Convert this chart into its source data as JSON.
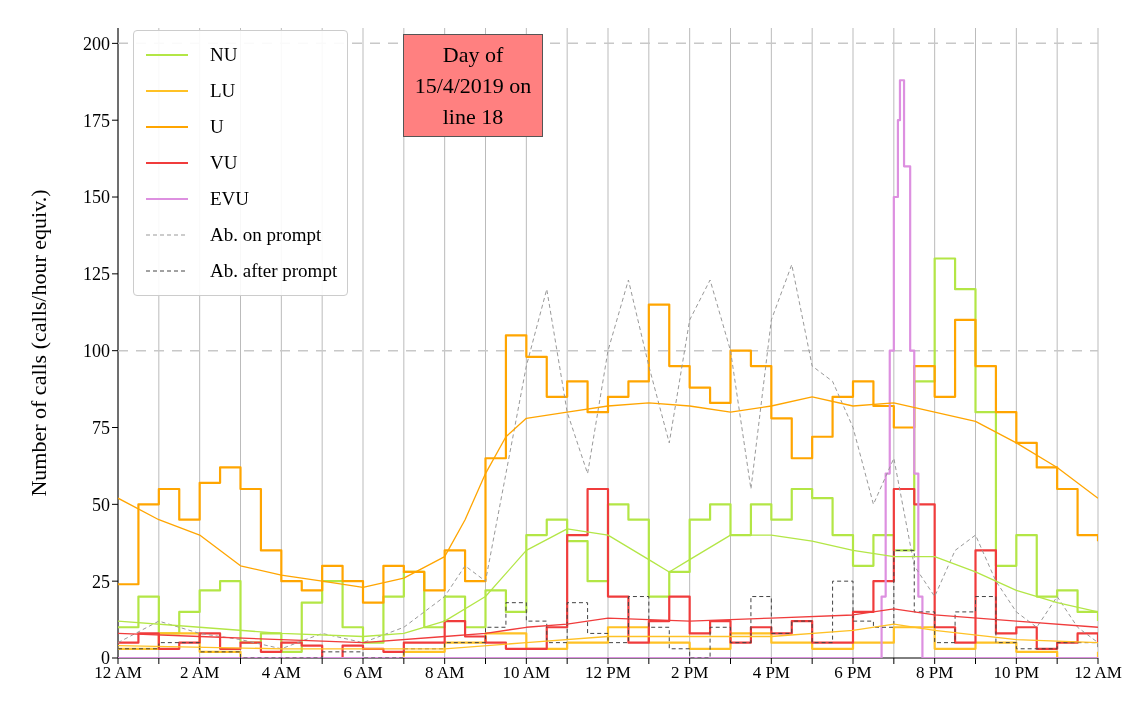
{
  "chart_data": {
    "type": "line",
    "ylabel": "Number of calls (calls/hour equiv.)",
    "xlim": [
      "2019-04-15T00:00",
      "2019-04-16T00:00"
    ],
    "ylim": [
      0,
      205
    ],
    "xticks": [
      {
        "value": "2019-04-15T00:00",
        "label": "12 AM"
      },
      {
        "value": "2019-04-15T01:00",
        "label": null
      },
      {
        "value": "2019-04-15T02:00",
        "label": "2 AM"
      },
      {
        "value": "2019-04-15T03:00",
        "label": null
      },
      {
        "value": "2019-04-15T04:00",
        "label": "4 AM"
      },
      {
        "value": "2019-04-15T05:00",
        "label": null
      },
      {
        "value": "2019-04-15T06:00",
        "label": "6 AM"
      },
      {
        "value": "2019-04-15T07:00",
        "label": null
      },
      {
        "value": "2019-04-15T08:00",
        "label": "8 AM"
      },
      {
        "value": "2019-04-15T09:00",
        "label": null
      },
      {
        "value": "2019-04-15T10:00",
        "label": "10 AM"
      },
      {
        "value": "2019-04-15T11:00",
        "label": null
      },
      {
        "value": "2019-04-15T12:00",
        "label": "12 PM"
      },
      {
        "value": "2019-04-15T13:00",
        "label": null
      },
      {
        "value": "2019-04-15T14:00",
        "label": "2 PM"
      },
      {
        "value": "2019-04-15T15:00",
        "label": null
      },
      {
        "value": "2019-04-15T16:00",
        "label": "4 PM"
      },
      {
        "value": "2019-04-15T17:00",
        "label": null
      },
      {
        "value": "2019-04-15T18:00",
        "label": "6 PM"
      },
      {
        "value": "2019-04-15T19:00",
        "label": null
      },
      {
        "value": "2019-04-15T20:00",
        "label": "8 PM"
      },
      {
        "value": "2019-04-15T21:00",
        "label": null
      },
      {
        "value": "2019-04-15T22:00",
        "label": "10 PM"
      },
      {
        "value": "2019-04-15T23:00",
        "label": null
      },
      {
        "value": "2019-04-16T00:00",
        "label": "12 AM"
      }
    ],
    "yticks": [
      0,
      25,
      50,
      75,
      100,
      125,
      150,
      175,
      200
    ],
    "grid": "x",
    "legend": "top left",
    "marker": "none",
    "ref_lines": [
      {
        "axis": "y",
        "value": 100,
        "color": "#c8c8c8",
        "line_style": "dashed"
      },
      {
        "axis": "y",
        "value": 200,
        "color": "#c8c8c8",
        "line_style": "dashed"
      }
    ],
    "annotations": [
      "Day of 15/4/2019 on line 18"
    ],
    "series": [
      {
        "name": "NU",
        "type": "step",
        "color": "#b3e646",
        "x": [
          "2019-04-15T00:00",
          "2019-04-15T00:30",
          "2019-04-15T01:00",
          "2019-04-15T01:30",
          "2019-04-15T02:00",
          "2019-04-15T02:30",
          "2019-04-15T03:00",
          "2019-04-15T03:30",
          "2019-04-15T04:00",
          "2019-04-15T04:30",
          "2019-04-15T05:00",
          "2019-04-15T05:30",
          "2019-04-15T06:00",
          "2019-04-15T06:30",
          "2019-04-15T07:00",
          "2019-04-15T07:30",
          "2019-04-15T08:00",
          "2019-04-15T08:30",
          "2019-04-15T09:00",
          "2019-04-15T09:30",
          "2019-04-15T10:00",
          "2019-04-15T10:30",
          "2019-04-15T11:00",
          "2019-04-15T11:30",
          "2019-04-15T12:00",
          "2019-04-15T12:30",
          "2019-04-15T13:00",
          "2019-04-15T13:30",
          "2019-04-15T14:00",
          "2019-04-15T14:30",
          "2019-04-15T15:00",
          "2019-04-15T15:30",
          "2019-04-15T16:00",
          "2019-04-15T16:30",
          "2019-04-15T17:00",
          "2019-04-15T17:30",
          "2019-04-15T18:00",
          "2019-04-15T18:30",
          "2019-04-15T19:00",
          "2019-04-15T19:30",
          "2019-04-15T20:00",
          "2019-04-15T20:30",
          "2019-04-15T21:00",
          "2019-04-15T21:30",
          "2019-04-15T22:00",
          "2019-04-15T22:30",
          "2019-04-15T23:00",
          "2019-04-15T23:30",
          "2019-04-16T00:00"
        ],
        "values": [
          10,
          20,
          8,
          15,
          22,
          25,
          5,
          8,
          2,
          18,
          25,
          10,
          5,
          20,
          28,
          10,
          20,
          10,
          22,
          15,
          40,
          45,
          38,
          25,
          50,
          45,
          20,
          28,
          45,
          50,
          40,
          50,
          45,
          55,
          52,
          40,
          30,
          40,
          35,
          90,
          130,
          120,
          80,
          30,
          40,
          20,
          22,
          15,
          12
        ]
      },
      {
        "name": "LU",
        "type": "step",
        "color": "#ffc125",
        "x": [
          "2019-04-15T00:00",
          "2019-04-15T01:00",
          "2019-04-15T02:00",
          "2019-04-15T03:00",
          "2019-04-15T04:00",
          "2019-04-15T05:00",
          "2019-04-15T06:00",
          "2019-04-15T07:00",
          "2019-04-15T08:00",
          "2019-04-15T09:00",
          "2019-04-15T10:00",
          "2019-04-15T11:00",
          "2019-04-15T12:00",
          "2019-04-15T13:00",
          "2019-04-15T14:00",
          "2019-04-15T15:00",
          "2019-04-15T16:00",
          "2019-04-15T17:00",
          "2019-04-15T18:00",
          "2019-04-15T19:00",
          "2019-04-15T20:00",
          "2019-04-15T21:00",
          "2019-04-15T22:00",
          "2019-04-15T23:00",
          "2019-04-16T00:00"
        ],
        "values": [
          3,
          8,
          2,
          0,
          0,
          0,
          0,
          2,
          5,
          8,
          3,
          5,
          10,
          5,
          3,
          8,
          5,
          3,
          5,
          10,
          3,
          5,
          2,
          0,
          2
        ]
      },
      {
        "name": "U",
        "type": "step",
        "color": "#ffa500",
        "x": [
          "2019-04-15T00:00",
          "2019-04-15T00:30",
          "2019-04-15T01:00",
          "2019-04-15T01:30",
          "2019-04-15T02:00",
          "2019-04-15T02:30",
          "2019-04-15T03:00",
          "2019-04-15T03:30",
          "2019-04-15T04:00",
          "2019-04-15T04:30",
          "2019-04-15T05:00",
          "2019-04-15T05:30",
          "2019-04-15T06:00",
          "2019-04-15T06:30",
          "2019-04-15T07:00",
          "2019-04-15T07:30",
          "2019-04-15T08:00",
          "2019-04-15T08:30",
          "2019-04-15T09:00",
          "2019-04-15T09:30",
          "2019-04-15T10:00",
          "2019-04-15T10:30",
          "2019-04-15T11:00",
          "2019-04-15T11:30",
          "2019-04-15T12:00",
          "2019-04-15T12:30",
          "2019-04-15T13:00",
          "2019-04-15T13:30",
          "2019-04-15T14:00",
          "2019-04-15T14:30",
          "2019-04-15T15:00",
          "2019-04-15T15:30",
          "2019-04-15T16:00",
          "2019-04-15T16:30",
          "2019-04-15T17:00",
          "2019-04-15T17:30",
          "2019-04-15T18:00",
          "2019-04-15T18:30",
          "2019-04-15T19:00",
          "2019-04-15T19:30",
          "2019-04-15T20:00",
          "2019-04-15T20:30",
          "2019-04-15T21:00",
          "2019-04-15T21:30",
          "2019-04-15T22:00",
          "2019-04-15T22:30",
          "2019-04-15T23:00",
          "2019-04-15T23:30",
          "2019-04-16T00:00"
        ],
        "values": [
          24,
          50,
          55,
          45,
          57,
          62,
          55,
          35,
          25,
          22,
          30,
          25,
          18,
          30,
          28,
          22,
          35,
          25,
          65,
          105,
          98,
          85,
          90,
          80,
          85,
          90,
          115,
          95,
          88,
          83,
          100,
          95,
          78,
          65,
          72,
          85,
          90,
          82,
          75,
          95,
          85,
          110,
          95,
          80,
          70,
          62,
          55,
          40,
          38
        ]
      },
      {
        "name": "VU",
        "type": "step",
        "color": "#f03c3c",
        "x": [
          "2019-04-15T00:00",
          "2019-04-15T00:30",
          "2019-04-15T01:00",
          "2019-04-15T01:30",
          "2019-04-15T02:00",
          "2019-04-15T02:30",
          "2019-04-15T03:00",
          "2019-04-15T03:30",
          "2019-04-15T04:00",
          "2019-04-15T04:30",
          "2019-04-15T05:00",
          "2019-04-15T05:30",
          "2019-04-15T06:00",
          "2019-04-15T06:30",
          "2019-04-15T07:00",
          "2019-04-15T07:30",
          "2019-04-15T08:00",
          "2019-04-15T08:30",
          "2019-04-15T09:00",
          "2019-04-15T09:30",
          "2019-04-15T10:00",
          "2019-04-15T10:30",
          "2019-04-15T11:00",
          "2019-04-15T11:30",
          "2019-04-15T12:00",
          "2019-04-15T12:30",
          "2019-04-15T13:00",
          "2019-04-15T13:30",
          "2019-04-15T14:00",
          "2019-04-15T14:30",
          "2019-04-15T15:00",
          "2019-04-15T15:30",
          "2019-04-15T16:00",
          "2019-04-15T16:30",
          "2019-04-15T17:00",
          "2019-04-15T17:30",
          "2019-04-15T18:00",
          "2019-04-15T18:30",
          "2019-04-15T19:00",
          "2019-04-15T19:30",
          "2019-04-15T20:00",
          "2019-04-15T20:30",
          "2019-04-15T21:00",
          "2019-04-15T21:30",
          "2019-04-15T22:00",
          "2019-04-15T22:30",
          "2019-04-15T23:00",
          "2019-04-15T23:30",
          "2019-04-16T00:00"
        ],
        "values": [
          5,
          8,
          3,
          5,
          8,
          3,
          5,
          2,
          5,
          4,
          0,
          4,
          3,
          2,
          5,
          5,
          12,
          7,
          5,
          3,
          3,
          10,
          40,
          55,
          20,
          5,
          12,
          20,
          8,
          12,
          5,
          10,
          8,
          12,
          5,
          5,
          15,
          25,
          55,
          50,
          10,
          5,
          35,
          8,
          10,
          3,
          5,
          8,
          5
        ]
      },
      {
        "name": "EVU",
        "type": "step",
        "color": "#dd90e0",
        "x": [
          "2019-04-15T00:00",
          "2019-04-15T18:36",
          "2019-04-15T18:42",
          "2019-04-15T18:48",
          "2019-04-15T18:54",
          "2019-04-15T19:00",
          "2019-04-15T19:06",
          "2019-04-15T19:09",
          "2019-04-15T19:15",
          "2019-04-15T19:24",
          "2019-04-15T19:30",
          "2019-04-15T19:36",
          "2019-04-15T19:42",
          "2019-04-16T00:00"
        ],
        "values": [
          0,
          0,
          20,
          60,
          100,
          150,
          175,
          188,
          160,
          100,
          60,
          20,
          0,
          0
        ]
      },
      {
        "name": "Ab. on prompt",
        "type": "line",
        "line_style": "dashed",
        "color": "#999999",
        "x": [
          "2019-04-15T00:00",
          "2019-04-15T01:00",
          "2019-04-15T02:00",
          "2019-04-15T03:00",
          "2019-04-15T04:00",
          "2019-04-15T05:00",
          "2019-04-15T06:00",
          "2019-04-15T07:00",
          "2019-04-15T08:00",
          "2019-04-15T08:30",
          "2019-04-15T09:00",
          "2019-04-15T09:30",
          "2019-04-15T10:00",
          "2019-04-15T10:30",
          "2019-04-15T11:00",
          "2019-04-15T11:30",
          "2019-04-15T12:00",
          "2019-04-15T12:30",
          "2019-04-15T13:00",
          "2019-04-15T13:30",
          "2019-04-15T14:00",
          "2019-04-15T14:30",
          "2019-04-15T15:00",
          "2019-04-15T15:30",
          "2019-04-15T16:00",
          "2019-04-15T16:30",
          "2019-04-15T17:00",
          "2019-04-15T17:30",
          "2019-04-15T18:00",
          "2019-04-15T18:30",
          "2019-04-15T19:00",
          "2019-04-15T19:30",
          "2019-04-15T20:00",
          "2019-04-15T20:30",
          "2019-04-15T21:00",
          "2019-04-15T21:30",
          "2019-04-15T22:00",
          "2019-04-15T22:30",
          "2019-04-15T23:00",
          "2019-04-15T23:30",
          "2019-04-16T00:00"
        ],
        "values": [
          5,
          12,
          8,
          6,
          3,
          8,
          5,
          10,
          20,
          30,
          25,
          60,
          95,
          120,
          80,
          60,
          100,
          123,
          95,
          70,
          110,
          123,
          100,
          55,
          110,
          128,
          95,
          90,
          75,
          50,
          65,
          30,
          20,
          35,
          40,
          25,
          15,
          10,
          20,
          10,
          5
        ]
      },
      {
        "name": "Ab. after prompt",
        "type": "step",
        "line_style": "dashed",
        "color": "#444444",
        "x": [
          "2019-04-15T00:00",
          "2019-04-15T01:00",
          "2019-04-15T02:00",
          "2019-04-15T03:00",
          "2019-04-15T04:00",
          "2019-04-15T05:00",
          "2019-04-15T06:00",
          "2019-04-15T07:00",
          "2019-04-15T08:00",
          "2019-04-15T09:00",
          "2019-04-15T09:30",
          "2019-04-15T10:00",
          "2019-04-15T10:30",
          "2019-04-15T11:00",
          "2019-04-15T11:30",
          "2019-04-15T12:00",
          "2019-04-15T12:30",
          "2019-04-15T13:00",
          "2019-04-15T13:30",
          "2019-04-15T14:00",
          "2019-04-15T14:30",
          "2019-04-15T15:00",
          "2019-04-15T15:30",
          "2019-04-15T16:00",
          "2019-04-15T16:30",
          "2019-04-15T17:00",
          "2019-04-15T17:30",
          "2019-04-15T18:00",
          "2019-04-15T18:30",
          "2019-04-15T19:00",
          "2019-04-15T19:30",
          "2019-04-15T20:00",
          "2019-04-15T20:30",
          "2019-04-15T21:00",
          "2019-04-15T21:30",
          "2019-04-15T22:00",
          "2019-04-15T23:00",
          "2019-04-16T00:00"
        ],
        "values": [
          3,
          5,
          2,
          0,
          0,
          2,
          0,
          3,
          5,
          10,
          18,
          12,
          5,
          18,
          8,
          5,
          20,
          10,
          3,
          0,
          10,
          5,
          20,
          8,
          12,
          5,
          25,
          12,
          10,
          35,
          15,
          5,
          15,
          20,
          5,
          3,
          5,
          3
        ]
      },
      {
        "type": "line",
        "color": "#b3e646",
        "x": [
          "2019-04-15T00:00",
          "2019-04-15T02:00",
          "2019-04-15T04:00",
          "2019-04-15T06:00",
          "2019-04-15T07:00",
          "2019-04-15T08:00",
          "2019-04-15T09:00",
          "2019-04-15T10:00",
          "2019-04-15T11:00",
          "2019-04-15T12:00",
          "2019-04-15T13:00",
          "2019-04-15T13:30",
          "2019-04-15T14:00",
          "2019-04-15T15:00",
          "2019-04-15T16:00",
          "2019-04-15T17:00",
          "2019-04-15T18:00",
          "2019-04-15T19:00",
          "2019-04-15T20:00",
          "2019-04-15T21:00",
          "2019-04-15T22:00",
          "2019-04-15T23:00",
          "2019-04-16T00:00"
        ],
        "values": [
          12,
          10,
          8,
          7,
          8,
          12,
          20,
          35,
          42,
          40,
          32,
          28,
          32,
          40,
          40,
          38,
          35,
          33,
          33,
          28,
          22,
          18,
          15
        ]
      },
      {
        "type": "line",
        "color": "#ffc125",
        "x": [
          "2019-04-15T00:00",
          "2019-04-15T04:00",
          "2019-04-15T08:00",
          "2019-04-15T10:00",
          "2019-04-15T12:00",
          "2019-04-15T16:00",
          "2019-04-15T18:00",
          "2019-04-15T19:00",
          "2019-04-15T20:00",
          "2019-04-15T22:00",
          "2019-04-16T00:00"
        ],
        "values": [
          4,
          3,
          3,
          5,
          7,
          7,
          9,
          11,
          9,
          6,
          5
        ]
      },
      {
        "type": "line",
        "color": "#ffa500",
        "x": [
          "2019-04-15T00:00",
          "2019-04-15T01:00",
          "2019-04-15T02:00",
          "2019-04-15T03:00",
          "2019-04-15T04:00",
          "2019-04-15T05:00",
          "2019-04-15T06:00",
          "2019-04-15T07:00",
          "2019-04-15T08:00",
          "2019-04-15T08:30",
          "2019-04-15T09:00",
          "2019-04-15T09:30",
          "2019-04-15T10:00",
          "2019-04-15T11:00",
          "2019-04-15T12:00",
          "2019-04-15T13:00",
          "2019-04-15T14:00",
          "2019-04-15T15:00",
          "2019-04-15T16:00",
          "2019-04-15T17:00",
          "2019-04-15T18:00",
          "2019-04-15T19:00",
          "2019-04-15T20:00",
          "2019-04-15T21:00",
          "2019-04-15T22:00",
          "2019-04-15T23:00",
          "2019-04-16T00:00"
        ],
        "values": [
          52,
          45,
          40,
          30,
          27,
          25,
          23,
          26,
          33,
          45,
          60,
          72,
          78,
          80,
          82,
          83,
          82,
          80,
          82,
          85,
          82,
          83,
          80,
          77,
          70,
          62,
          52
        ]
      },
      {
        "type": "line",
        "color": "#f03c3c",
        "x": [
          "2019-04-15T00:00",
          "2019-04-15T02:00",
          "2019-04-15T04:00",
          "2019-04-15T06:00",
          "2019-04-15T08:00",
          "2019-04-15T09:00",
          "2019-04-15T10:00",
          "2019-04-15T11:00",
          "2019-04-15T12:00",
          "2019-04-15T14:00",
          "2019-04-15T16:00",
          "2019-04-15T18:00",
          "2019-04-15T19:00",
          "2019-04-15T20:00",
          "2019-04-15T22:00",
          "2019-04-16T00:00"
        ],
        "values": [
          8,
          7,
          6,
          5,
          7,
          8,
          10,
          11,
          13,
          12,
          13,
          14,
          16,
          14,
          12,
          10
        ]
      }
    ]
  }
}
